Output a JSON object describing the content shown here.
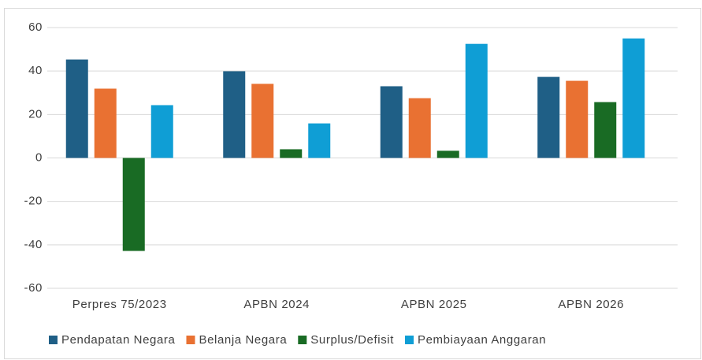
{
  "chart_data": {
    "type": "bar",
    "categories": [
      "Perpres 75/2023",
      "APBN 2024",
      "APBN 2025",
      "APBN 2026"
    ],
    "series": [
      {
        "name": "Pendapatan Negara",
        "color": "#1f5f86",
        "values": [
          45.3,
          39.9,
          33,
          37.3
        ]
      },
      {
        "name": "Belanja Negara",
        "color": "#e97132",
        "values": [
          31.9,
          34.1,
          27.5,
          35.5
        ]
      },
      {
        "name": "Surplus/Defisit",
        "color": "#196b24",
        "values": [
          -42.8,
          4,
          3.3,
          25.7
        ]
      },
      {
        "name": "Pembiayaan Anggaran",
        "color": "#0f9ed5",
        "values": [
          24.3,
          15.9,
          52.5,
          55
        ]
      }
    ],
    "ylim": [
      -60,
      60
    ],
    "yticks": [
      -60,
      -40,
      -20,
      0,
      20,
      40,
      60
    ],
    "grid": true,
    "legend": "bottom"
  }
}
